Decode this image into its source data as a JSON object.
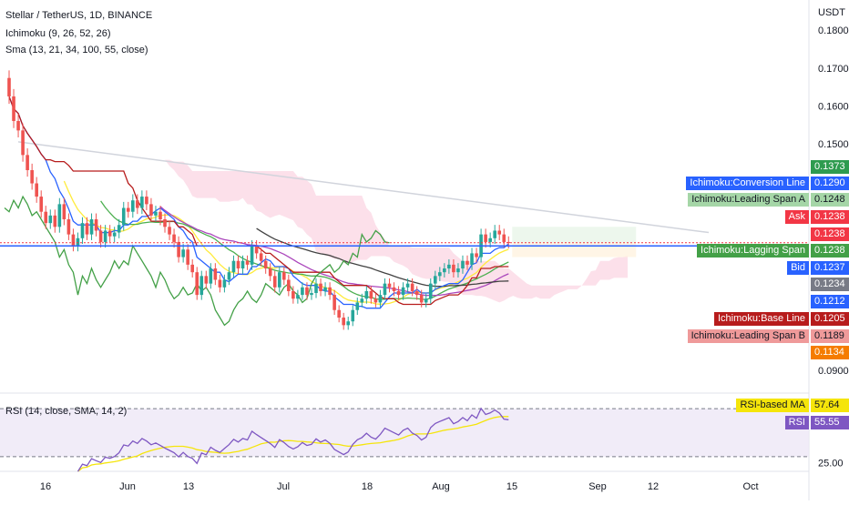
{
  "header": {
    "symbol": "Stellar / TetherUS, 1D, BINANCE",
    "ichimoku_label": "Ichimoku (9, 26, 52, 26)",
    "sma_label": "Sma (13, 21, 34, 100, 55, close)",
    "rsi_label": "RSI (14, close, SMA, 14, 2)"
  },
  "axis": {
    "currency": "USDT",
    "price_ticks": [
      "0.1800",
      "0.1700",
      "0.1600",
      "0.1500",
      "0.0900"
    ],
    "rsi_ticks": [
      "25.00"
    ],
    "date_ticks": [
      "16",
      "Jun",
      "13",
      "Jul",
      "18",
      "Aug",
      "15",
      "Sep",
      "12",
      "Oct"
    ]
  },
  "tags": [
    {
      "text": "0.1373",
      "label": "",
      "color": "#2e9b4f"
    },
    {
      "text": "0.1290",
      "label": "Ichimoku:Conversion Line",
      "color": "#2962ff"
    },
    {
      "text": "0.1248",
      "label": "Ichimoku:Leading Span A",
      "color": "#a5d6a7"
    },
    {
      "text": "0.1238",
      "label": "Ask",
      "color": "#f23645"
    },
    {
      "text": "0.1238",
      "label": "",
      "color": "#f23645"
    },
    {
      "text": "0.1238",
      "label": "Ichimoku:Lagging Span",
      "color": "#43a047"
    },
    {
      "text": "0.1237",
      "label": "Bid",
      "color": "#2962ff"
    },
    {
      "text": "0.1234",
      "label": "",
      "color": "#787b86"
    },
    {
      "text": "0.1212",
      "label": "",
      "color": "#2962ff"
    },
    {
      "text": "0.1205",
      "label": "Ichimoku:Base Line",
      "color": "#b71c1c"
    },
    {
      "text": "0.1189",
      "label": "Ichimoku:Leading Span B",
      "color": "#ef9a9a"
    },
    {
      "text": "0.1134",
      "label": "",
      "color": "#f57c00"
    }
  ],
  "rsi_tags": [
    {
      "text": "57.64",
      "label": "RSI-based MA",
      "color": "#f5e50a"
    },
    {
      "text": "55.55",
      "label": "RSI",
      "color": "#7e57c2"
    }
  ],
  "chart_data": {
    "type": "candlestick",
    "price_axis_range": [
      0.085,
      0.188
    ],
    "rsi_axis_range": [
      20,
      80
    ],
    "close": [
      0.1625,
      0.156,
      0.1535,
      0.147,
      0.143,
      0.1395,
      0.136,
      0.132,
      0.129,
      0.131,
      0.128,
      0.134,
      0.13,
      0.126,
      0.123,
      0.125,
      0.129,
      0.126,
      0.13,
      0.127,
      0.124,
      0.127,
      0.1255,
      0.1265,
      0.1285,
      0.133,
      0.132,
      0.135,
      0.133,
      0.136,
      0.134,
      0.131,
      0.132,
      0.13,
      0.128,
      0.126,
      0.124,
      0.12,
      0.122,
      0.118,
      0.116,
      0.11,
      0.115,
      0.113,
      0.117,
      0.114,
      0.112,
      0.114,
      0.116,
      0.119,
      0.117,
      0.119,
      0.118,
      0.123,
      0.121,
      0.119,
      0.117,
      0.115,
      0.112,
      0.116,
      0.114,
      0.111,
      0.109,
      0.11,
      0.112,
      0.11,
      0.1105,
      0.113,
      0.111,
      0.112,
      0.11,
      0.106,
      0.104,
      0.102,
      0.103,
      0.106,
      0.108,
      0.109,
      0.111,
      0.109,
      0.108,
      0.11,
      0.113,
      0.112,
      0.111,
      0.11,
      0.112,
      0.113,
      0.111,
      0.11,
      0.108,
      0.109,
      0.113,
      0.115,
      0.116,
      0.117,
      0.118,
      0.116,
      0.117,
      0.119,
      0.118,
      0.121,
      0.12,
      0.126,
      0.124,
      0.125,
      0.127,
      0.126,
      0.124,
      0.1238
    ],
    "series": [
      {
        "name": "Ichimoku:Conversion Line",
        "color": "#2962ff",
        "last": 0.129
      },
      {
        "name": "Ichimoku:Base Line",
        "color": "#b71c1c",
        "last": 0.1205
      },
      {
        "name": "Ichimoku:Leading Span A",
        "color": "#a5d6a7",
        "last": 0.1248
      },
      {
        "name": "Ichimoku:Leading Span B",
        "color": "#ef9a9a",
        "last": 0.1189
      },
      {
        "name": "Ichimoku:Lagging Span",
        "color": "#43a047",
        "last": 0.1238
      },
      {
        "name": "RSI",
        "color": "#7e57c2",
        "last": 55.55
      },
      {
        "name": "RSI-based MA",
        "color": "#f5e50a",
        "last": 57.64
      }
    ]
  }
}
